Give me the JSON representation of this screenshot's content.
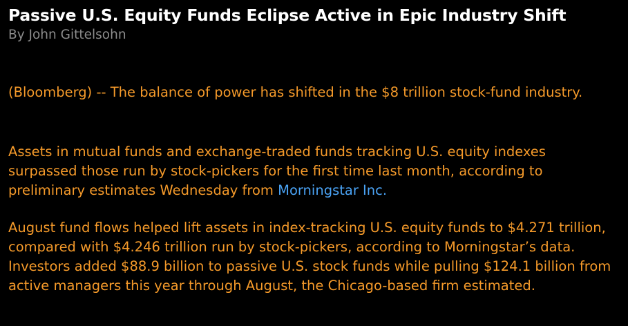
{
  "article": {
    "headline": "Passive U.S. Equity Funds Eclipse Active in Epic Industry Shift",
    "byline": "By John Gittelsohn",
    "paragraphs": [
      {
        "before": "(Bloomberg) -- The balance of power has shifted in the $8 trillion stock-fund industry.",
        "link": "",
        "after": ""
      },
      {
        "before": "Assets in mutual funds and exchange-traded funds tracking U.S. equity indexes surpassed those run by stock-pickers for the first time last month, according to preliminary estimates Wednesday from ",
        "link": "Morningstar Inc.",
        "after": ""
      },
      {
        "before": "August fund flows helped lift assets in index-tracking U.S. equity funds to $4.271 trillion, compared with $4.246 trillion run by stock-pickers, according to Morningstar’s data. Investors added $88.9 billion to passive U.S. stock funds while pulling $124.1 billion from active managers this year through August, the Chicago-based firm estimated.",
        "link": "",
        "after": ""
      }
    ]
  },
  "colors": {
    "background": "#000000",
    "headline": "#ffffff",
    "byline": "#8c8c8c",
    "body_text": "#f59a2a",
    "link": "#4aa3f5"
  }
}
